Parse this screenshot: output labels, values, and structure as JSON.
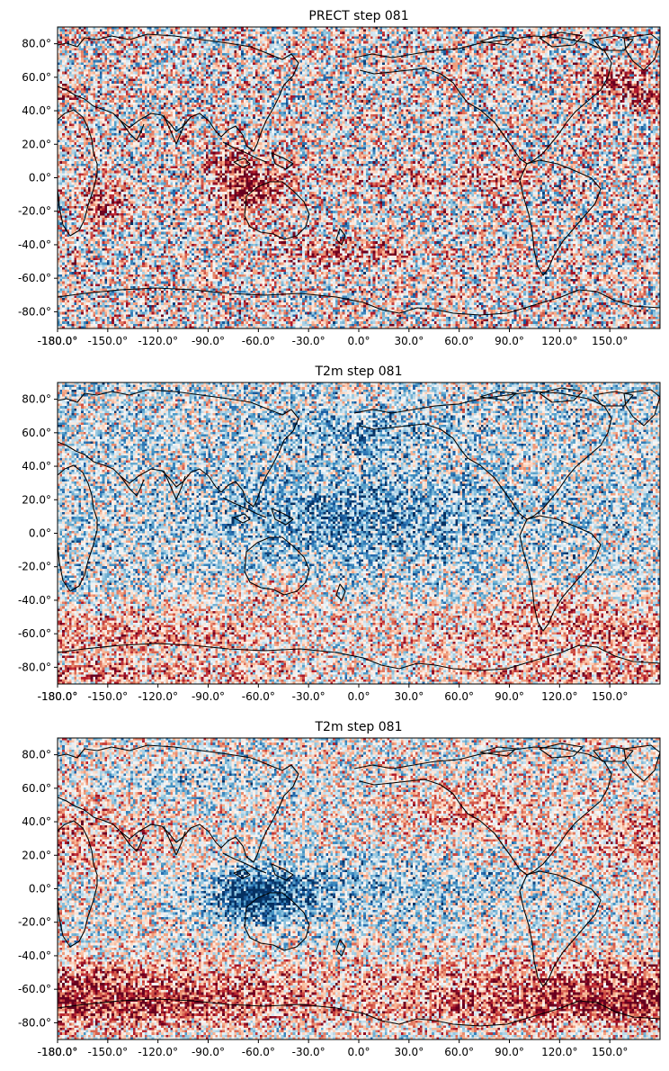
{
  "figure": {
    "colormap": "RdBu_r",
    "colormap_stops": [
      "#053061",
      "#2166ac",
      "#4393c3",
      "#92c5de",
      "#d1e5f0",
      "#f7f7f7",
      "#fddbc7",
      "#f4a582",
      "#d6604d",
      "#b2182b",
      "#67001f"
    ],
    "coastline_color": "#000000"
  },
  "chart_data": [
    {
      "type": "heatmap",
      "title": "PRECT step 081",
      "projection": "platecarree, central longitude 180",
      "xlim": [
        -180,
        180
      ],
      "ylim": [
        -90,
        90
      ],
      "x_ticks": [
        "-180.0°",
        "-150.0°",
        "-120.0°",
        "-90.0°",
        "-60.0°",
        "-30.0°",
        "0.0°",
        "30.0°",
        "60.0°",
        "90.0°",
        "120.0°",
        "150.0°"
      ],
      "y_ticks": [
        "80.0°",
        "60.0°",
        "40.0°",
        "20.0°",
        "0.0°",
        "-20.0°",
        "-40.0°",
        "-60.0°",
        "-80.0°"
      ],
      "background_bias": 0.02,
      "noise": 0.72,
      "features": [
        {
          "lon": 115,
          "lat": -5,
          "rlon": 22,
          "rlat": 14,
          "amp": 0.85
        },
        {
          "lon": 100,
          "lat": 10,
          "rlon": 12,
          "rlat": 8,
          "amp": 0.35
        },
        {
          "lon": 25,
          "lat": -15,
          "rlon": 14,
          "rlat": 12,
          "amp": 0.6
        },
        {
          "lon": -10,
          "lat": 50,
          "rlon": 18,
          "rlat": 10,
          "amp": 0.55
        },
        {
          "lon": -90,
          "lat": 0,
          "rlon": 14,
          "rlat": 10,
          "amp": 0.4
        },
        {
          "lon": -150,
          "lat": 0,
          "rlon": 60,
          "rlat": 5,
          "amp": 0.35
        },
        {
          "lon": 170,
          "lat": -45,
          "rlon": 40,
          "rlat": 8,
          "amp": 0.45
        },
        {
          "lon": -30,
          "lat": 60,
          "rlon": 15,
          "rlat": 8,
          "amp": 0.45
        }
      ]
    },
    {
      "type": "heatmap",
      "title": "T2m step 081",
      "projection": "platecarree, central longitude 180",
      "xlim": [
        -180,
        180
      ],
      "ylim": [
        -90,
        90
      ],
      "x_ticks": [
        "-180.0°",
        "-150.0°",
        "-120.0°",
        "-90.0°",
        "-60.0°",
        "-30.0°",
        "0.0°",
        "30.0°",
        "60.0°",
        "90.0°",
        "120.0°",
        "150.0°"
      ],
      "y_ticks": [
        "80.0°",
        "60.0°",
        "40.0°",
        "20.0°",
        "0.0°",
        "-20.0°",
        "-40.0°",
        "-60.0°",
        "-80.0°"
      ],
      "background_bias": -0.15,
      "noise": 0.6,
      "features": [
        {
          "lon": 180,
          "lat": 10,
          "rlon": 90,
          "rlat": 25,
          "amp": -0.45
        },
        {
          "lon": 180,
          "lat": 60,
          "rlon": 60,
          "rlat": 12,
          "amp": -0.35
        },
        {
          "lon": 0,
          "lat": -60,
          "rlon": 180,
          "rlat": 18,
          "amp": 0.55
        },
        {
          "lon": 0,
          "lat": -85,
          "rlon": 180,
          "rlat": 8,
          "amp": 0.5
        },
        {
          "lon": 130,
          "lat": -35,
          "rlon": 25,
          "rlat": 10,
          "amp": 0.3
        },
        {
          "lon": -60,
          "lat": -40,
          "rlon": 30,
          "rlat": 10,
          "amp": 0.35
        }
      ]
    },
    {
      "type": "heatmap",
      "title": "T2m step 081",
      "projection": "platecarree, central longitude 180",
      "xlim": [
        -180,
        180
      ],
      "ylim": [
        -90,
        90
      ],
      "x_ticks": [
        "-180.0°",
        "-150.0°",
        "-120.0°",
        "-90.0°",
        "-60.0°",
        "-30.0°",
        "0.0°",
        "30.0°",
        "60.0°",
        "90.0°",
        "120.0°",
        "150.0°"
      ],
      "y_ticks": [
        "80.0°",
        "60.0°",
        "40.0°",
        "20.0°",
        "0.0°",
        "-20.0°",
        "-40.0°",
        "-60.0°",
        "-80.0°"
      ],
      "background_bias": 0.0,
      "noise": 0.6,
      "features": [
        {
          "lon": 120,
          "lat": -5,
          "rlon": 30,
          "rlat": 15,
          "amp": -0.8
        },
        {
          "lon": 180,
          "lat": 0,
          "rlon": 110,
          "rlat": 20,
          "amp": -0.35
        },
        {
          "lon": 0,
          "lat": -68,
          "rlon": 180,
          "rlat": 14,
          "amp": 0.8
        },
        {
          "lon": 0,
          "lat": -50,
          "rlon": 180,
          "rlat": 10,
          "amp": 0.35
        },
        {
          "lon": 0,
          "lat": 30,
          "rlon": 60,
          "rlat": 20,
          "amp": 0.35
        },
        {
          "lon": -120,
          "lat": 45,
          "rlon": 40,
          "rlat": 15,
          "amp": 0.35
        },
        {
          "lon": 90,
          "lat": 65,
          "rlon": 50,
          "rlat": 10,
          "amp": -0.3
        }
      ]
    }
  ]
}
